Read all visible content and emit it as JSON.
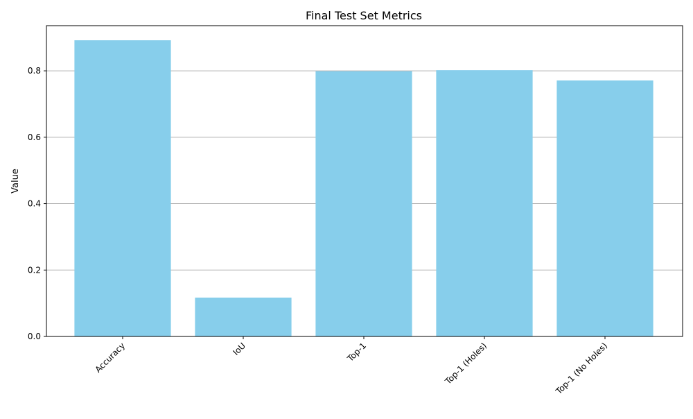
{
  "chart_data": {
    "type": "bar",
    "title": "Final Test Set Metrics",
    "xlabel": "",
    "ylabel": "Value",
    "categories": [
      "Accuracy",
      "IoU",
      "Top-1",
      "Top-1 (Holes)",
      "Top-1 (No Holes)"
    ],
    "values": [
      0.892,
      0.117,
      0.799,
      0.802,
      0.771
    ],
    "ylim": [
      0,
      0.936
    ],
    "yticks": [
      "0.0",
      "0.2",
      "0.4",
      "0.6",
      "0.8"
    ],
    "ytick_values": [
      0,
      0.2,
      0.4,
      0.6,
      0.8
    ],
    "grid": "y-major",
    "xtick_rotation": 45,
    "colors": {
      "bar": "#87ceeb",
      "grid": "#b0b0b0",
      "axis": "#000000"
    }
  }
}
